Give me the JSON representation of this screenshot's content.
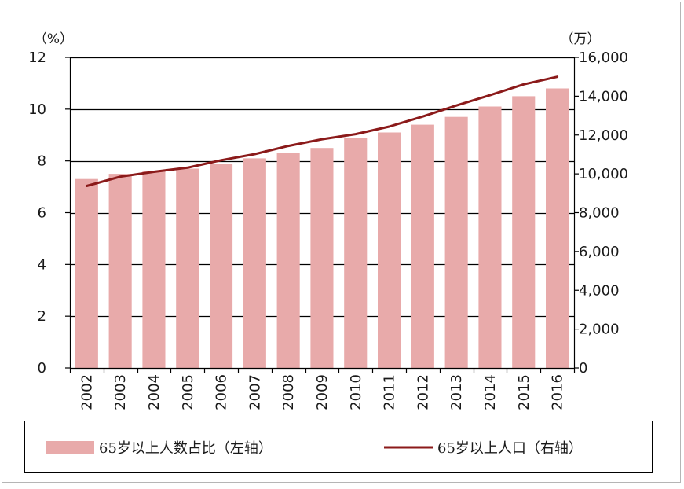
{
  "chart_data": {
    "type": "bar",
    "categories": [
      "2002",
      "2003",
      "2004",
      "2005",
      "2006",
      "2007",
      "2008",
      "2009",
      "2010",
      "2011",
      "2012",
      "2013",
      "2014",
      "2015",
      "2016"
    ],
    "series": [
      {
        "name": "65岁以上人数占比（左轴）",
        "type": "bar",
        "axis": "left",
        "color": "#e8aaaa",
        "values": [
          7.3,
          7.5,
          7.6,
          7.7,
          7.9,
          8.1,
          8.3,
          8.5,
          8.9,
          9.1,
          9.4,
          9.7,
          10.1,
          10.5,
          10.8
        ]
      },
      {
        "name": "65岁以上人口（右轴）",
        "type": "line",
        "axis": "right",
        "color": "#8b1a1a",
        "values": [
          9377,
          9857,
          10105,
          10318,
          10700,
          11019,
          11441,
          11785,
          12047,
          12435,
          12953,
          13523,
          14052,
          14611,
          15000
        ]
      }
    ],
    "left_axis": {
      "unit": "（%）",
      "ylim": [
        0,
        12
      ],
      "ticks": [
        "0",
        "2",
        "4",
        "6",
        "8",
        "10",
        "12"
      ]
    },
    "right_axis": {
      "unit": "（万）",
      "ylim": [
        0,
        16000
      ],
      "ticks": [
        "0",
        "2,000",
        "4,000",
        "6,000",
        "8,000",
        "10,000",
        "12,000",
        "14,000",
        "16,000"
      ]
    },
    "grid": "horizontal",
    "legend_position": "bottom"
  }
}
